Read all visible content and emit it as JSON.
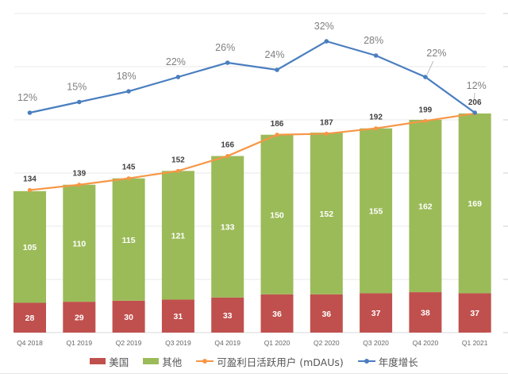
{
  "chart_data": {
    "type": "bar",
    "stacked": true,
    "categories": [
      "Q4 2018",
      "Q1 2019",
      "Q2 2019",
      "Q3 2019",
      "Q4 2019",
      "Q1 2020",
      "Q2 2020",
      "Q3 2020",
      "Q4 2020",
      "Q1 2021"
    ],
    "series": [
      {
        "name": "美国",
        "kind": "bar",
        "color": "#c0504d",
        "values": [
          28,
          29,
          30,
          31,
          33,
          36,
          36,
          37,
          38,
          37
        ]
      },
      {
        "name": "其他",
        "kind": "bar",
        "color": "#9bbb59",
        "values": [
          105,
          110,
          115,
          121,
          133,
          150,
          152,
          155,
          162,
          169
        ]
      },
      {
        "name": "可盈利日活跃用户 (mDAUs)",
        "kind": "line",
        "color": "#f79646",
        "values": [
          134,
          139,
          145,
          152,
          166,
          186,
          187,
          192,
          199,
          206
        ]
      },
      {
        "name": "年度增长",
        "kind": "line",
        "axis": "secondary",
        "color": "#4a7ebf",
        "values": [
          12,
          15,
          18,
          22,
          26,
          24,
          32,
          28,
          22,
          12
        ],
        "labels": [
          "12%",
          "15%",
          "18%",
          "22%",
          "26%",
          "24%",
          "32%",
          "28%",
          "22%",
          "12%"
        ]
      }
    ],
    "title": "",
    "xlabel": "",
    "ylabel": "",
    "ylim": [
      0,
      300
    ],
    "y_gridline_step": 50,
    "y2_unit": "%",
    "grid": true,
    "legend": "bottom"
  },
  "legend": {
    "items": [
      {
        "label": "美国",
        "color": "#c0504d",
        "type": "box"
      },
      {
        "label": "其他",
        "color": "#9bbb59",
        "type": "box"
      },
      {
        "label": "可盈利日活跃用户 (mDAUs)",
        "color": "#f79646",
        "type": "line"
      },
      {
        "label": "年度增长",
        "color": "#4a7ebf",
        "type": "line"
      }
    ]
  }
}
